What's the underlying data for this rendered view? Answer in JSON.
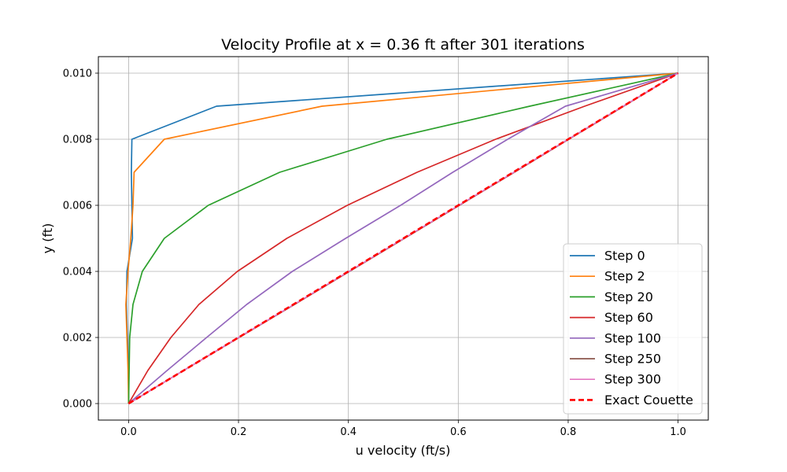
{
  "chart_data": {
    "type": "line",
    "title": "Velocity Profile at x = 0.36 ft after 301 iterations",
    "xlabel": "u velocity (ft/s)",
    "ylabel": "y (ft)",
    "xlim": [
      -0.055,
      1.055
    ],
    "ylim": [
      -0.0005,
      0.0105
    ],
    "xticks": [
      0.0,
      0.2,
      0.4,
      0.6,
      0.8,
      1.0
    ],
    "xtick_labels": [
      "0.0",
      "0.2",
      "0.4",
      "0.6",
      "0.8",
      "1.0"
    ],
    "yticks": [
      0.0,
      0.002,
      0.004,
      0.006,
      0.008,
      0.01
    ],
    "ytick_labels": [
      "0.000",
      "0.002",
      "0.004",
      "0.006",
      "0.008",
      "0.010"
    ],
    "grid": true,
    "legend_position": "lower-right",
    "series": [
      {
        "name": "Step 0",
        "color": "#1f77b4",
        "style": "solid",
        "x": [
          0.0,
          0.0,
          -0.002,
          -0.004,
          -0.003,
          0.007,
          0.006,
          0.005,
          0.006,
          0.16,
          1.0
        ],
        "y": [
          0.0,
          0.001,
          0.002,
          0.003,
          0.004,
          0.005,
          0.006,
          0.007,
          0.008,
          0.009,
          0.01
        ]
      },
      {
        "name": "Step 2",
        "color": "#ff7f0e",
        "style": "solid",
        "x": [
          0.0,
          -0.001,
          -0.003,
          -0.005,
          -0.001,
          0.004,
          0.008,
          0.01,
          0.065,
          0.352,
          1.0
        ],
        "y": [
          0.0,
          0.001,
          0.002,
          0.003,
          0.004,
          0.005,
          0.006,
          0.007,
          0.008,
          0.009,
          0.01
        ]
      },
      {
        "name": "Step 20",
        "color": "#2ca02c",
        "style": "solid",
        "x": [
          0.0,
          0.001,
          0.002,
          0.008,
          0.025,
          0.065,
          0.145,
          0.275,
          0.47,
          0.73,
          1.0
        ],
        "y": [
          0.0,
          0.001,
          0.002,
          0.003,
          0.004,
          0.005,
          0.006,
          0.007,
          0.008,
          0.009,
          0.01
        ]
      },
      {
        "name": "Step 60",
        "color": "#d62728",
        "style": "solid",
        "x": [
          0.0,
          0.035,
          0.077,
          0.128,
          0.198,
          0.288,
          0.398,
          0.525,
          0.668,
          0.83,
          1.0
        ],
        "y": [
          0.0,
          0.001,
          0.002,
          0.003,
          0.004,
          0.005,
          0.006,
          0.007,
          0.008,
          0.009,
          0.01
        ]
      },
      {
        "name": "Step 100",
        "color": "#9467bd",
        "style": "solid",
        "x": [
          0.0,
          0.07,
          0.142,
          0.215,
          0.298,
          0.395,
          0.495,
          0.59,
          0.69,
          0.795,
          1.0
        ],
        "y": [
          0.0,
          0.001,
          0.002,
          0.003,
          0.004,
          0.005,
          0.006,
          0.007,
          0.008,
          0.009,
          0.01
        ]
      },
      {
        "name": "Step 250",
        "color": "#8c564b",
        "style": "solid",
        "x": [
          0.0,
          0.1,
          0.201,
          0.302,
          0.402,
          0.502,
          0.602,
          0.702,
          0.801,
          0.901,
          1.0
        ],
        "y": [
          0.0,
          0.001,
          0.002,
          0.003,
          0.004,
          0.005,
          0.006,
          0.007,
          0.008,
          0.009,
          0.01
        ]
      },
      {
        "name": "Step 300",
        "color": "#e377c2",
        "style": "solid",
        "x": [
          0.0,
          0.1,
          0.2,
          0.301,
          0.401,
          0.501,
          0.601,
          0.701,
          0.8,
          0.9,
          1.0
        ],
        "y": [
          0.0,
          0.001,
          0.002,
          0.003,
          0.004,
          0.005,
          0.006,
          0.007,
          0.008,
          0.009,
          0.01
        ]
      },
      {
        "name": "Exact Couette",
        "color": "#ff0000",
        "style": "dashed",
        "x": [
          0.0,
          1.0
        ],
        "y": [
          0.0,
          0.01
        ]
      }
    ]
  }
}
